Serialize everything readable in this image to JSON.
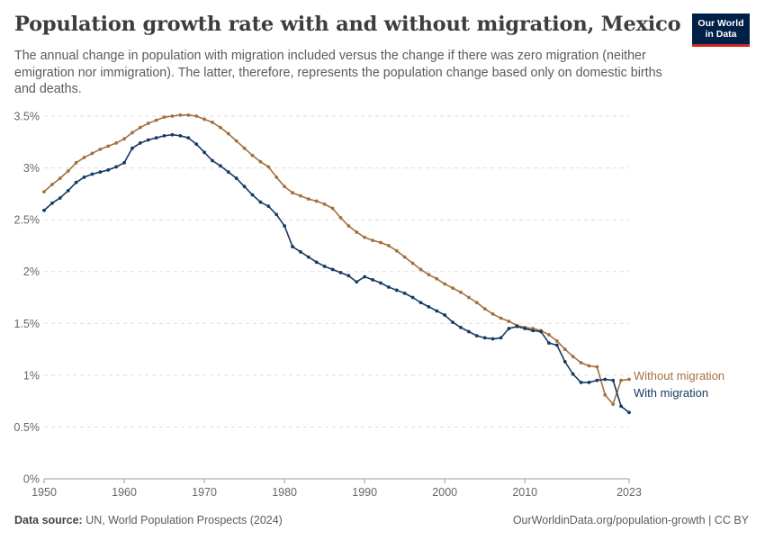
{
  "title": "Population growth rate with and without migration, Mexico",
  "subtitle": "The annual change in population with migration included versus the change if there was zero migration (neither emigration nor immigration). The latter, therefore, represents the population change based only on domestic births and deaths.",
  "logo": {
    "line1": "Our World",
    "line2": "in Data"
  },
  "footer": {
    "source_label": "Data source:",
    "source_text": "UN, World Population Prospects (2024)",
    "url_text": "OurWorldinData.org/population-growth | CC BY"
  },
  "colors": {
    "without": "#a2703d",
    "with": "#163a62",
    "grid": "#dddddd",
    "axis": "#666666"
  },
  "chart_data": {
    "type": "line",
    "title": "Population growth rate with and without migration, Mexico",
    "xlabel": "",
    "ylabel": "",
    "xlim": [
      1950,
      2023
    ],
    "ylim": [
      0,
      3.5
    ],
    "x_ticks": [
      1950,
      1960,
      1970,
      1980,
      1990,
      2000,
      2010,
      2023
    ],
    "y_ticks": [
      {
        "value": 0,
        "label": "0%"
      },
      {
        "value": 0.5,
        "label": "0.5%"
      },
      {
        "value": 1,
        "label": "1%"
      },
      {
        "value": 1.5,
        "label": "1.5%"
      },
      {
        "value": 2,
        "label": "2%"
      },
      {
        "value": 2.5,
        "label": "2.5%"
      },
      {
        "value": 3,
        "label": "3%"
      },
      {
        "value": 3.5,
        "label": "3.5%"
      }
    ],
    "grid": true,
    "x": [
      1950,
      1951,
      1952,
      1953,
      1954,
      1955,
      1956,
      1957,
      1958,
      1959,
      1960,
      1961,
      1962,
      1963,
      1964,
      1965,
      1966,
      1967,
      1968,
      1969,
      1970,
      1971,
      1972,
      1973,
      1974,
      1975,
      1976,
      1977,
      1978,
      1979,
      1980,
      1981,
      1982,
      1983,
      1984,
      1985,
      1986,
      1987,
      1988,
      1989,
      1990,
      1991,
      1992,
      1993,
      1994,
      1995,
      1996,
      1997,
      1998,
      1999,
      2000,
      2001,
      2002,
      2003,
      2004,
      2005,
      2006,
      2007,
      2008,
      2009,
      2010,
      2011,
      2012,
      2013,
      2014,
      2015,
      2016,
      2017,
      2018,
      2019,
      2020,
      2021,
      2022,
      2023
    ],
    "series": [
      {
        "name": "Without migration",
        "color_key": "without",
        "values": [
          2.77,
          2.84,
          2.9,
          2.97,
          3.05,
          3.1,
          3.14,
          3.18,
          3.21,
          3.24,
          3.28,
          3.34,
          3.39,
          3.43,
          3.46,
          3.49,
          3.5,
          3.51,
          3.51,
          3.5,
          3.47,
          3.44,
          3.39,
          3.33,
          3.26,
          3.19,
          3.12,
          3.06,
          3.01,
          2.91,
          2.82,
          2.76,
          2.73,
          2.7,
          2.68,
          2.65,
          2.61,
          2.52,
          2.44,
          2.38,
          2.33,
          2.3,
          2.28,
          2.25,
          2.2,
          2.14,
          2.08,
          2.02,
          1.97,
          1.93,
          1.88,
          1.84,
          1.8,
          1.75,
          1.7,
          1.64,
          1.59,
          1.55,
          1.52,
          1.48,
          1.46,
          1.45,
          1.43,
          1.39,
          1.33,
          1.25,
          1.18,
          1.12,
          1.09,
          1.08,
          0.81,
          0.72,
          0.95,
          0.96
        ]
      },
      {
        "name": "With migration",
        "color_key": "with",
        "values": [
          2.59,
          2.66,
          2.71,
          2.78,
          2.86,
          2.91,
          2.94,
          2.96,
          2.98,
          3.01,
          3.05,
          3.19,
          3.24,
          3.27,
          3.29,
          3.31,
          3.32,
          3.31,
          3.29,
          3.23,
          3.15,
          3.07,
          3.02,
          2.96,
          2.9,
          2.82,
          2.74,
          2.67,
          2.63,
          2.55,
          2.44,
          2.24,
          2.19,
          2.14,
          2.09,
          2.05,
          2.02,
          1.99,
          1.96,
          1.9,
          1.95,
          1.92,
          1.89,
          1.85,
          1.82,
          1.79,
          1.75,
          1.7,
          1.66,
          1.62,
          1.58,
          1.51,
          1.46,
          1.42,
          1.38,
          1.36,
          1.35,
          1.36,
          1.45,
          1.47,
          1.45,
          1.43,
          1.42,
          1.31,
          1.29,
          1.13,
          1.01,
          0.93,
          0.93,
          0.95,
          0.96,
          0.95,
          0.7,
          0.64
        ]
      }
    ]
  }
}
